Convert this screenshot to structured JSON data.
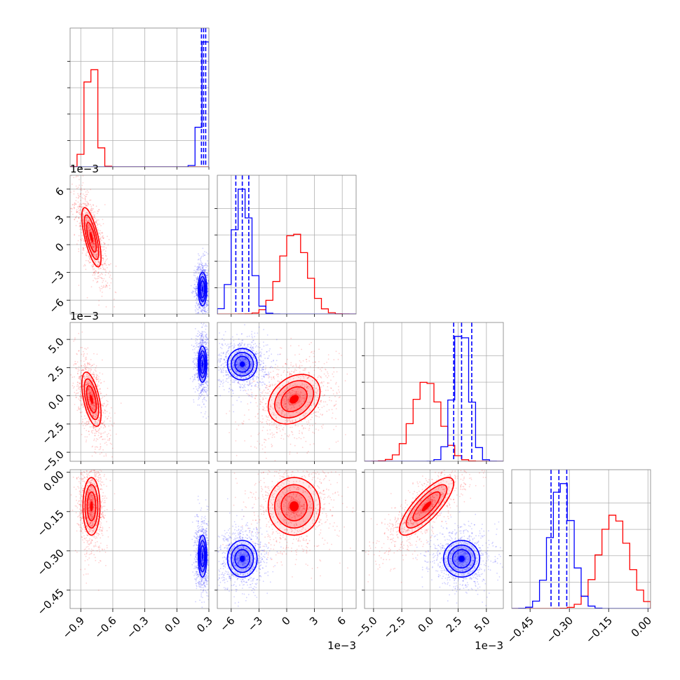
{
  "chart_data": {
    "type": "corner",
    "series": [
      {
        "name": "",
        "color": "#ff0000"
      },
      {
        "name": "",
        "color": "#0000ff"
      }
    ],
    "parameters": [
      {
        "index": 0,
        "range": [
          -1.0,
          0.3
        ],
        "ticks": [
          -0.9,
          -0.6,
          -0.3,
          0.0,
          0.3
        ],
        "tick_labels": [
          "−0.9",
          "−0.6",
          "−0.3",
          "0.0",
          "0.3"
        ],
        "offset_label": ""
      },
      {
        "index": 1,
        "range": [
          -0.0075,
          0.0075
        ],
        "ticks": [
          -0.006,
          -0.003,
          0.0,
          0.003,
          0.006
        ],
        "tick_labels": [
          "−6",
          "−3",
          "0",
          "3",
          "6"
        ],
        "offset_label": "1e−3"
      },
      {
        "index": 2,
        "range": [
          -0.0058,
          0.0065
        ],
        "ticks": [
          -0.005,
          -0.0025,
          0.0,
          0.0025,
          0.005
        ],
        "tick_labels": [
          "−5.0",
          "−2.5",
          "0.0",
          "2.5",
          "5.0"
        ],
        "offset_label": "1e−3"
      },
      {
        "index": 3,
        "range": [
          -0.52,
          0.01
        ],
        "ticks": [
          -0.45,
          -0.3,
          -0.15,
          0.0
        ],
        "tick_labels": [
          "−0.45",
          "−0.30",
          "−0.15",
          "0.00"
        ],
        "offset_label": ""
      }
    ],
    "marginals": [
      {
        "param": 0,
        "bins": 20,
        "red": {
          "mean": -0.8,
          "sd": 0.045
        },
        "blue": {
          "mean": 0.27,
          "sd": 0.04
        },
        "quantile_lines": [
          0.23,
          0.25,
          0.27
        ]
      },
      {
        "param": 1,
        "bins": 20,
        "red": {
          "mean": 0.0008,
          "sd": 0.0014
        },
        "blue": {
          "mean": -0.0048,
          "sd": 0.0009
        },
        "quantile_lines": [
          -0.0055,
          -0.0048,
          -0.0041
        ]
      },
      {
        "param": 2,
        "bins": 20,
        "red": {
          "mean": -0.0003,
          "sd": 0.0012
        },
        "blue": {
          "mean": 0.0028,
          "sd": 0.0007
        },
        "quantile_lines": [
          0.0021,
          0.0028,
          0.0037
        ]
      },
      {
        "param": 3,
        "bins": 20,
        "red": {
          "mean": -0.13,
          "sd": 0.055
        },
        "blue": {
          "mean": -0.33,
          "sd": 0.04
        },
        "quantile_lines": [
          -0.37,
          -0.34,
          -0.31
        ]
      }
    ],
    "joint": [
      {
        "x": 0,
        "y": 1,
        "red": {
          "mx": -0.8,
          "my": 0.0008,
          "sx": 0.045,
          "sy": 0.0016,
          "rho": -0.7
        },
        "blue": {
          "mx": 0.24,
          "my": -0.0048,
          "sx": 0.02,
          "sy": 0.0009,
          "rho": 0.0
        }
      },
      {
        "x": 0,
        "y": 2,
        "red": {
          "mx": -0.8,
          "my": -0.0003,
          "sx": 0.045,
          "sy": 0.0012,
          "rho": -0.55
        },
        "blue": {
          "mx": 0.24,
          "my": 0.0028,
          "sx": 0.02,
          "sy": 0.0008,
          "rho": 0.0
        }
      },
      {
        "x": 1,
        "y": 2,
        "red": {
          "mx": 0.0008,
          "my": -0.0003,
          "sx": 0.0014,
          "sy": 0.0011,
          "rho": 0.3
        },
        "blue": {
          "mx": -0.0048,
          "my": 0.0028,
          "sx": 0.0008,
          "sy": 0.0007,
          "rho": 0.0
        }
      },
      {
        "x": 0,
        "y": 3,
        "red": {
          "mx": -0.8,
          "my": -0.13,
          "sx": 0.04,
          "sy": 0.055,
          "rho": 0.0
        },
        "blue": {
          "mx": 0.24,
          "my": -0.32,
          "sx": 0.02,
          "sy": 0.04,
          "rho": 0.0
        }
      },
      {
        "x": 1,
        "y": 3,
        "red": {
          "mx": 0.0008,
          "my": -0.13,
          "sx": 0.0014,
          "sy": 0.055,
          "rho": 0.0
        },
        "blue": {
          "mx": -0.0048,
          "my": -0.33,
          "sx": 0.0008,
          "sy": 0.035,
          "rho": 0.0
        }
      },
      {
        "x": 2,
        "y": 3,
        "red": {
          "mx": -0.0003,
          "my": -0.13,
          "sx": 0.0012,
          "sy": 0.055,
          "rho": 0.8
        },
        "blue": {
          "mx": 0.0028,
          "my": -0.33,
          "sx": 0.0008,
          "sy": 0.035,
          "rho": 0.0
        }
      }
    ],
    "grid": true
  }
}
